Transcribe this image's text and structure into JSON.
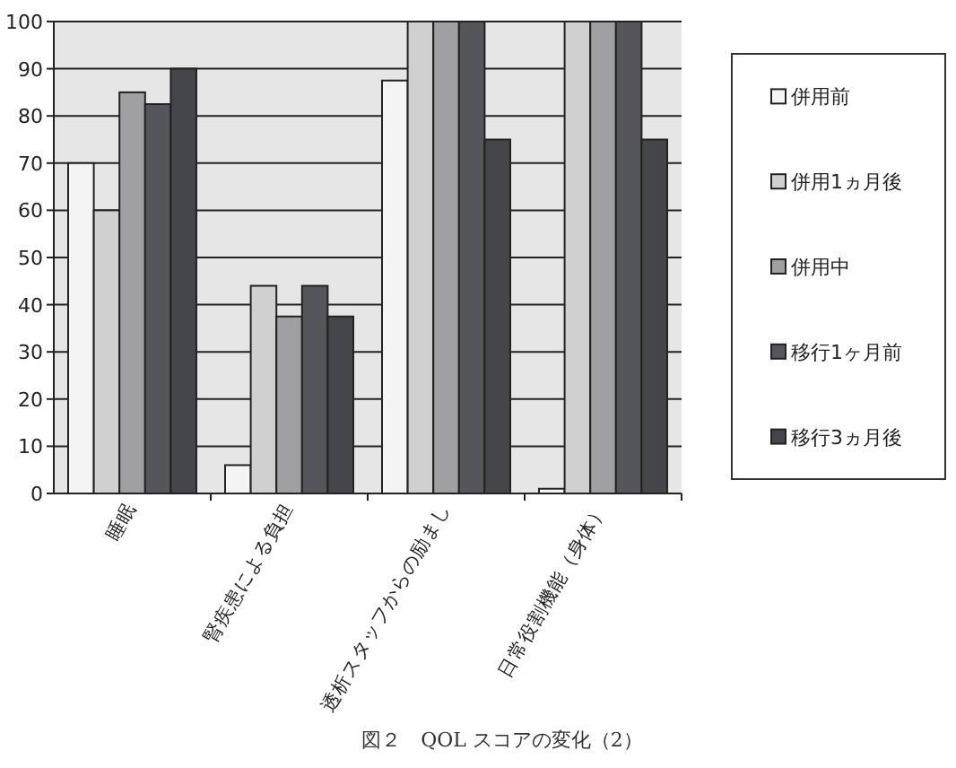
{
  "chart_data": {
    "type": "bar",
    "title": "図２　QOL スコアの変化（2）",
    "categories": [
      "睡眠",
      "腎疾患による負担",
      "透析スタッフからの励まし",
      "日常役割機能（身体）"
    ],
    "series": [
      {
        "name": "併用前",
        "color": "#f4f4f4",
        "values": [
          70,
          6,
          87.5,
          1
        ]
      },
      {
        "name": "併用1ヵ月後",
        "color": "#d0d0d0",
        "values": [
          60,
          44,
          100,
          100
        ]
      },
      {
        "name": "併用中",
        "color": "#a0a0a4",
        "values": [
          85,
          37.5,
          100,
          100
        ]
      },
      {
        "name": "移行1ヶ月前",
        "color": "#55555c",
        "values": [
          82.5,
          44,
          100,
          100
        ]
      },
      {
        "name": "移行3ヵ月後",
        "color": "#45454c",
        "values": [
          90,
          37.5,
          75,
          75
        ]
      }
    ],
    "ylim": [
      0,
      100
    ],
    "yticks": [
      0,
      10,
      20,
      30,
      40,
      50,
      60,
      70,
      80,
      90,
      100
    ],
    "grid": "y",
    "legend": "right"
  }
}
